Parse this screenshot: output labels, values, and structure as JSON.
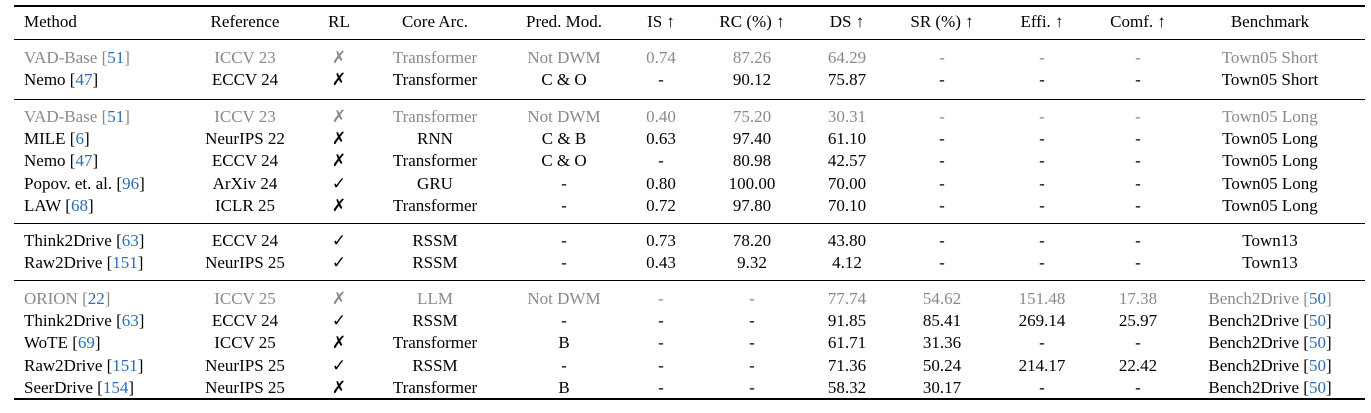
{
  "table": {
    "headers": [
      "Method",
      "Reference",
      "RL",
      "Core Arc.",
      "Pred. Mod.",
      "IS ↑",
      "RC (%) ↑",
      "DS ↑",
      "SR (%) ↑",
      "Effi. ↑",
      "Comf. ↑",
      "Benchmark"
    ],
    "groups": [
      {
        "rows": [
          {
            "method": "VAD-Base ",
            "cite": "51",
            "ref": "ICCV 23",
            "rl": "✗",
            "arc": "Transformer",
            "pred": "Not DWM",
            "is": "0.74",
            "rc": "87.26",
            "ds": "64.29",
            "sr": "-",
            "effi": "-",
            "comf": "-",
            "bench": "Town05 Short",
            "bcite": "",
            "gray": true
          },
          {
            "method": "Nemo ",
            "cite": "47",
            "ref": "ECCV 24",
            "rl": "✗",
            "arc": "Transformer",
            "pred": "C & O",
            "is": "-",
            "rc": "90.12",
            "ds": "75.87",
            "sr": "-",
            "effi": "-",
            "comf": "-",
            "bench": "Town05 Short",
            "bcite": "",
            "gray": false
          }
        ]
      },
      {
        "rows": [
          {
            "method": "VAD-Base ",
            "cite": "51",
            "ref": "ICCV 23",
            "rl": "✗",
            "arc": "Transformer",
            "pred": "Not DWM",
            "is": "0.40",
            "rc": "75.20",
            "ds": "30.31",
            "sr": "-",
            "effi": "-",
            "comf": "-",
            "bench": "Town05 Long",
            "bcite": "",
            "gray": true
          },
          {
            "method": "MILE ",
            "cite": "6",
            "ref": "NeurIPS 22",
            "rl": "✗",
            "arc": "RNN",
            "pred": "C & B",
            "is": "0.63",
            "rc": "97.40",
            "ds": "61.10",
            "sr": "-",
            "effi": "-",
            "comf": "-",
            "bench": "Town05 Long",
            "bcite": "",
            "gray": false
          },
          {
            "method": "Nemo ",
            "cite": "47",
            "ref": "ECCV 24",
            "rl": "✗",
            "arc": "Transformer",
            "pred": "C & O",
            "is": "-",
            "rc": "80.98",
            "ds": "42.57",
            "sr": "-",
            "effi": "-",
            "comf": "-",
            "bench": "Town05 Long",
            "bcite": "",
            "gray": false
          },
          {
            "method": "Popov. et. al. ",
            "cite": "96",
            "ref": "ArXiv 24",
            "rl": "✓",
            "arc": "GRU",
            "pred": "-",
            "is": "0.80",
            "rc": "100.00",
            "ds": "70.00",
            "sr": "-",
            "effi": "-",
            "comf": "-",
            "bench": "Town05 Long",
            "bcite": "",
            "gray": false
          },
          {
            "method": "LAW ",
            "cite": "68",
            "ref": "ICLR 25",
            "rl": "✗",
            "arc": "Transformer",
            "pred": "-",
            "is": "0.72",
            "rc": "97.80",
            "ds": "70.10",
            "sr": "-",
            "effi": "-",
            "comf": "-",
            "bench": "Town05 Long",
            "bcite": "",
            "gray": false
          }
        ]
      },
      {
        "rows": [
          {
            "method": "Think2Drive ",
            "cite": "63",
            "ref": "ECCV 24",
            "rl": "✓",
            "arc": "RSSM",
            "pred": "-",
            "is": "0.73",
            "rc": "78.20",
            "ds": "43.80",
            "sr": "-",
            "effi": "-",
            "comf": "-",
            "bench": "Town13",
            "bcite": "",
            "gray": false
          },
          {
            "method": "Raw2Drive ",
            "cite": "151",
            "ref": "NeurIPS 25",
            "rl": "✓",
            "arc": "RSSM",
            "pred": "-",
            "is": "0.43",
            "rc": "9.32",
            "ds": "4.12",
            "sr": "-",
            "effi": "-",
            "comf": "-",
            "bench": "Town13",
            "bcite": "",
            "gray": false
          }
        ]
      },
      {
        "rows": [
          {
            "method": "ORION ",
            "cite": "22",
            "ref": "ICCV 25",
            "rl": "✗",
            "arc": "LLM",
            "pred": "Not DWM",
            "is": "-",
            "rc": "-",
            "ds": "77.74",
            "sr": "54.62",
            "effi": "151.48",
            "comf": "17.38",
            "bench": "Bench2Drive ",
            "bcite": "50",
            "gray": true
          },
          {
            "method": "Think2Drive ",
            "cite": "63",
            "ref": "ECCV 24",
            "rl": "✓",
            "arc": "RSSM",
            "pred": "-",
            "is": "-",
            "rc": "-",
            "ds": "91.85",
            "sr": "85.41",
            "effi": "269.14",
            "comf": "25.97",
            "bench": "Bench2Drive ",
            "bcite": "50",
            "gray": false
          },
          {
            "method": "WoTE ",
            "cite": "69",
            "ref": "ICCV 25",
            "rl": "✗",
            "arc": "Transformer",
            "pred": "B",
            "is": "-",
            "rc": "-",
            "ds": "61.71",
            "sr": "31.36",
            "effi": "-",
            "comf": "-",
            "bench": "Bench2Drive ",
            "bcite": "50",
            "gray": false
          },
          {
            "method": "Raw2Drive ",
            "cite": "151",
            "ref": "NeurIPS 25",
            "rl": "✓",
            "arc": "RSSM",
            "pred": "-",
            "is": "-",
            "rc": "-",
            "ds": "71.36",
            "sr": "50.24",
            "effi": "214.17",
            "comf": "22.42",
            "bench": "Bench2Drive ",
            "bcite": "50",
            "gray": false
          },
          {
            "method": "SeerDrive ",
            "cite": "154",
            "ref": "NeurIPS 25",
            "rl": "✗",
            "arc": "Transformer",
            "pred": "B",
            "is": "-",
            "rc": "-",
            "ds": "58.32",
            "sr": "30.17",
            "effi": "-",
            "comf": "-",
            "bench": "Bench2Drive ",
            "bcite": "50",
            "gray": false
          }
        ]
      }
    ]
  }
}
